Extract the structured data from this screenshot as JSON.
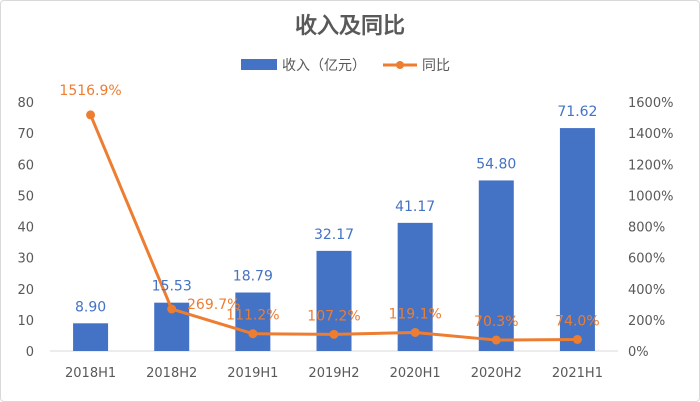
{
  "chart_data": {
    "type": "bar",
    "title": "收入及同比",
    "categories": [
      "2018H1",
      "2018H2",
      "2019H1",
      "2019H2",
      "2020H1",
      "2020H2",
      "2021H1"
    ],
    "series": [
      {
        "name": "收入（亿元）",
        "type": "bar",
        "axis": "left",
        "values": [
          8.9,
          15.53,
          18.79,
          32.17,
          41.17,
          54.8,
          71.62
        ],
        "labels": [
          "8.90",
          "15.53",
          "18.79",
          "32.17",
          "41.17",
          "54.80",
          "71.62"
        ]
      },
      {
        "name": "同比",
        "type": "line",
        "axis": "right",
        "values": [
          1516.9,
          269.7,
          111.2,
          107.2,
          119.1,
          70.3,
          74.0
        ],
        "labels": [
          "1516.9%",
          "269.7%",
          "111.2%",
          "107.2%",
          "119.1%",
          "70.3%",
          "74.0%"
        ]
      }
    ],
    "y_left": {
      "ylim": [
        0,
        80
      ],
      "ticks": [
        "0",
        "10",
        "20",
        "30",
        "40",
        "50",
        "60",
        "70",
        "80"
      ]
    },
    "y_right": {
      "ylim": [
        0,
        1600
      ],
      "ticks": [
        "0%",
        "200%",
        "400%",
        "600%",
        "800%",
        "1000%",
        "1200%",
        "1400%",
        "1600%"
      ]
    },
    "legend_position": "top-center",
    "grid": false,
    "colors": {
      "bar": "#4472c4",
      "line": "#ed7d31",
      "text": "#595959",
      "title": "#595959"
    }
  }
}
